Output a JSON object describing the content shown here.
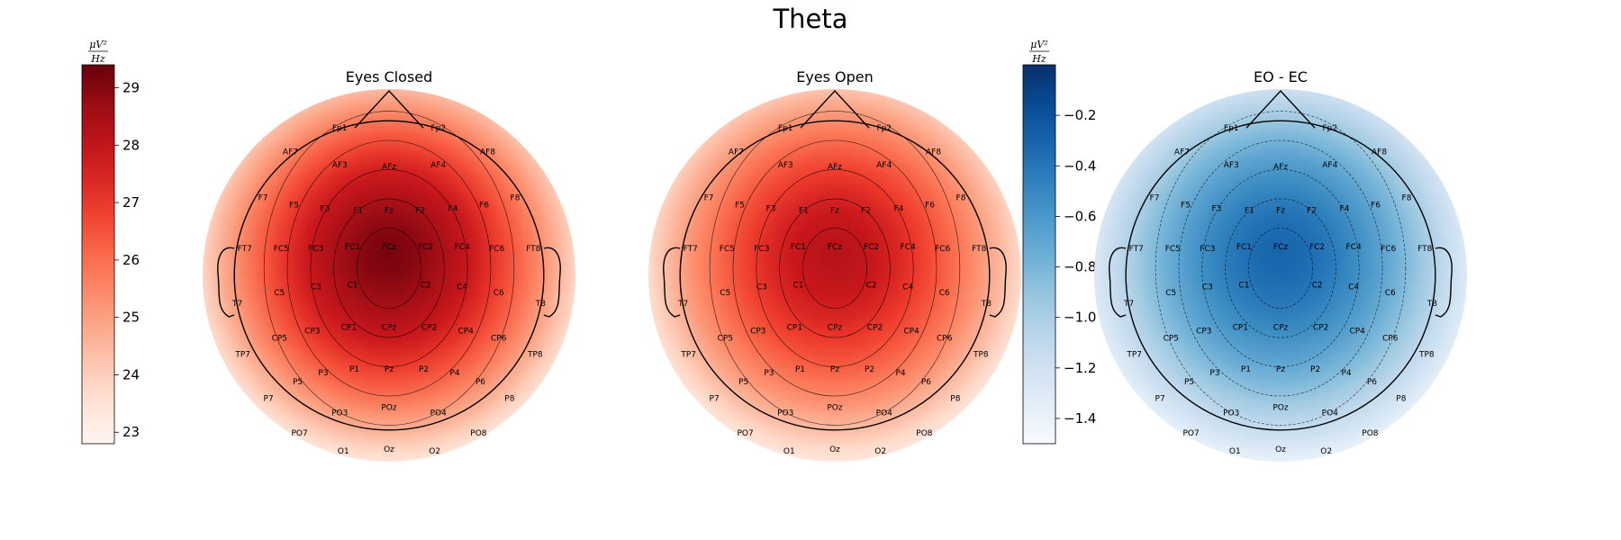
{
  "figure": {
    "suptitle": "Theta"
  },
  "chart_data": [
    {
      "type": "heatmap",
      "title": "Eyes Closed",
      "colormap": "Reds",
      "colorbar": {
        "unit_num": "μV²",
        "unit_den": "Hz",
        "range": [
          22.8,
          29.4
        ],
        "ticks": [
          23,
          24,
          25,
          26,
          27,
          28,
          29
        ],
        "tick_labels": [
          "23",
          "24",
          "25",
          "26",
          "27",
          "28",
          "29"
        ],
        "side": "left"
      },
      "peak_value": 29.2,
      "peak_region": "central",
      "edge_value": 23.0
    },
    {
      "type": "heatmap",
      "title": "Eyes Open",
      "colormap": "Reds",
      "shares_colorbar_with": "Eyes Closed",
      "peak_value": 28.2,
      "peak_region": "central",
      "edge_value": 23.0
    },
    {
      "type": "heatmap",
      "title": "EO - EC",
      "colormap": "Blues_r",
      "colorbar": {
        "unit_num": "μV²",
        "unit_den": "Hz",
        "range": [
          -1.5,
          0.0
        ],
        "ticks": [
          -1.4,
          -1.2,
          -1.0,
          -0.8,
          -0.6,
          -0.4,
          -0.2
        ],
        "tick_labels": [
          "−1.4",
          "−1.2",
          "−1.0",
          "−0.8",
          "−0.6",
          "−0.4",
          "−0.2"
        ],
        "side": "left"
      },
      "min_value": -1.45,
      "max_value": -0.3,
      "contour_style": "dashed"
    }
  ],
  "electrodes": [
    "Fp1",
    "Fp2",
    "AF7",
    "AF3",
    "AFz",
    "AF4",
    "AF8",
    "F7",
    "F5",
    "F3",
    "F1",
    "Fz",
    "F2",
    "F4",
    "F6",
    "F8",
    "FT7",
    "FC5",
    "FC3",
    "FC1",
    "FCz",
    "FC2",
    "FC4",
    "FC6",
    "FT8",
    "T7",
    "C5",
    "C3",
    "C1",
    "C2",
    "C4",
    "C6",
    "T8",
    "TP7",
    "CP5",
    "CP3",
    "CP1",
    "CPz",
    "CP2",
    "CP4",
    "CP6",
    "TP8",
    "P7",
    "P5",
    "P3",
    "P1",
    "Pz",
    "P2",
    "P4",
    "P6",
    "P8",
    "PO7",
    "PO3",
    "POz",
    "PO4",
    "PO8",
    "O1",
    "Oz",
    "O2"
  ]
}
